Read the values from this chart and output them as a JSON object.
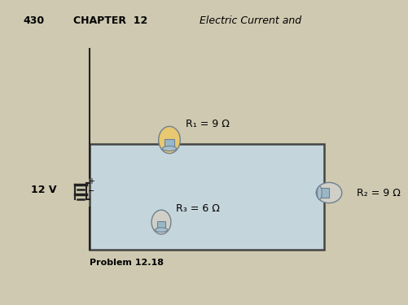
{
  "bg_color": "#cec9b0",
  "page_number": "430",
  "chapter_text": "CHAPTER  12",
  "title_text": "Electric Current and",
  "problem_text": "Problem 12.18",
  "voltage_label": "12 V",
  "r1_label": "R₁ = 9 Ω",
  "r2_label": "R₂ = 9 Ω",
  "r3_label": "R₃ = 6 Ω",
  "box_facecolor": "#c5d5dc",
  "box_edgecolor": "#444444",
  "bulb_globe_top_color": "#e8c870",
  "bulb_globe_dim_color": "#d0d0c8",
  "bulb_base_color": "#98b8c8",
  "bulb_edge_color": "#708090",
  "wire_color": "#222222",
  "header_fontsize": 9,
  "label_fontsize": 9,
  "problem_fontsize": 8
}
